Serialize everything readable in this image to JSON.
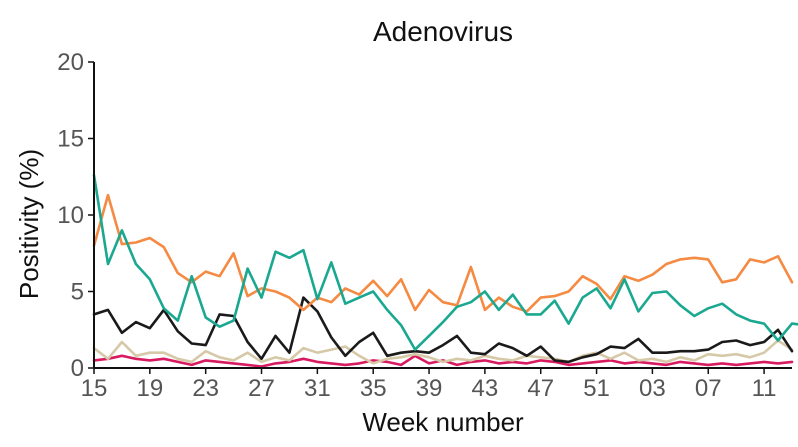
{
  "chart_data": {
    "type": "line",
    "title": "Adenovirus",
    "xlabel": "Week number",
    "ylabel": "Positivity (%)",
    "ylim": [
      0,
      20
    ],
    "yticks": [
      "0",
      "5",
      "10",
      "15",
      "20"
    ],
    "xtick_labels": [
      "15",
      "19",
      "23",
      "27",
      "31",
      "35",
      "39",
      "43",
      "47",
      "51",
      "03",
      "07",
      "11"
    ],
    "xtick_index": [
      0,
      4,
      8,
      12,
      16,
      20,
      24,
      28,
      32,
      36,
      40,
      44,
      48
    ],
    "grid": false,
    "legend": "none",
    "series": [
      {
        "color": "#1aa890",
        "values": [
          12.6,
          6.8,
          9.0,
          6.8,
          5.8,
          3.9,
          3.1,
          6.0,
          3.3,
          2.7,
          3.1,
          6.5,
          4.6,
          7.6,
          7.2,
          7.7,
          4.5,
          6.9,
          4.2,
          4.6,
          5.0,
          3.8,
          2.8,
          1.2,
          2.1,
          3.0,
          4.0,
          4.3,
          5.0,
          3.8,
          4.8,
          3.5,
          3.5,
          4.4,
          2.9,
          4.6,
          5.2,
          3.9,
          5.8,
          3.7,
          4.9,
          5.0,
          4.1,
          3.4,
          3.9,
          4.2,
          3.5,
          3.1,
          2.9,
          1.8,
          2.9,
          2.8
        ]
      },
      {
        "color": "#f58a42",
        "values": [
          8.0,
          11.3,
          8.1,
          8.2,
          8.5,
          7.9,
          6.2,
          5.6,
          6.3,
          6.0,
          7.5,
          4.7,
          5.2,
          5.0,
          4.6,
          3.8,
          4.6,
          4.3,
          5.2,
          4.8,
          5.7,
          4.7,
          5.8,
          3.8,
          5.1,
          4.3,
          4.1,
          6.6,
          3.8,
          4.6,
          4.0,
          3.7,
          4.6,
          4.7,
          5.0,
          6.0,
          5.5,
          4.5,
          6.0,
          5.7,
          6.1,
          6.8,
          7.1,
          7.2,
          7.1,
          5.6,
          5.8,
          7.1,
          6.9,
          7.3,
          5.6
        ]
      },
      {
        "color": "#1a1a1a",
        "values": [
          3.5,
          3.8,
          2.3,
          3.0,
          2.6,
          3.8,
          2.4,
          1.6,
          1.5,
          3.5,
          3.4,
          1.7,
          0.6,
          2.1,
          1.0,
          4.6,
          3.7,
          2.0,
          0.8,
          1.7,
          2.3,
          0.8,
          1.0,
          1.1,
          1.0,
          1.5,
          2.1,
          1.0,
          0.9,
          1.6,
          1.3,
          0.8,
          1.4,
          0.5,
          0.4,
          0.7,
          0.9,
          1.4,
          1.3,
          1.9,
          1.0,
          1.0,
          1.1,
          1.1,
          1.2,
          1.7,
          1.8,
          1.5,
          1.7,
          2.5,
          1.1
        ]
      },
      {
        "color": "#d6c9a8",
        "values": [
          1.3,
          0.6,
          1.7,
          0.8,
          1.0,
          1.0,
          0.6,
          0.4,
          1.1,
          0.7,
          0.5,
          1.0,
          0.4,
          0.7,
          0.5,
          1.3,
          1.0,
          1.2,
          1.4,
          0.8,
          0.3,
          0.6,
          0.7,
          0.9,
          0.7,
          0.4,
          0.6,
          0.5,
          0.8,
          0.6,
          0.5,
          0.8,
          0.7,
          0.6,
          0.4,
          0.8,
          1.0,
          0.6,
          1.0,
          0.5,
          0.6,
          0.4,
          0.7,
          0.5,
          0.9,
          0.8,
          0.9,
          0.7,
          1.0,
          1.8,
          1.2
        ]
      },
      {
        "color": "#d81b60",
        "values": [
          0.5,
          0.6,
          0.8,
          0.6,
          0.5,
          0.6,
          0.4,
          0.2,
          0.5,
          0.4,
          0.3,
          0.2,
          0.1,
          0.3,
          0.4,
          0.6,
          0.4,
          0.3,
          0.2,
          0.3,
          0.5,
          0.4,
          0.2,
          0.8,
          0.3,
          0.5,
          0.2,
          0.4,
          0.5,
          0.3,
          0.4,
          0.3,
          0.5,
          0.4,
          0.2,
          0.3,
          0.4,
          0.5,
          0.3,
          0.4,
          0.3,
          0.2,
          0.4,
          0.3,
          0.2,
          0.3,
          0.2,
          0.3,
          0.4,
          0.3,
          0.4
        ]
      }
    ]
  }
}
